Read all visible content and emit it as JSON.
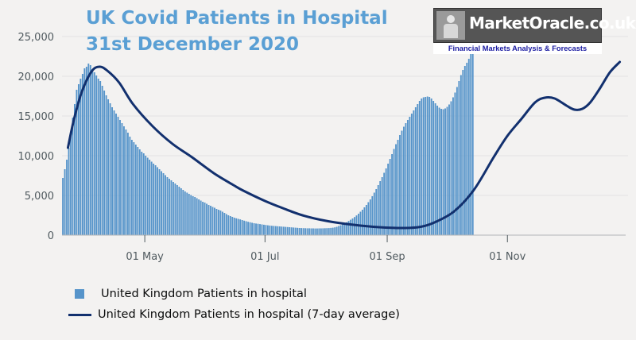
{
  "title": {
    "line1": "UK Covid Patients in Hospital",
    "line2": "31st December 2020"
  },
  "logo": {
    "text": "MarketOracle.co.uk",
    "tagline": "Financial Markets Analysis & Forecasts"
  },
  "legend": {
    "bars_label": "United Kingdom Patients in hospital",
    "line_label": "United Kingdom Patients in hospital (7-day average)"
  },
  "colors": {
    "bars": "#5694ca",
    "line": "#12306e",
    "title": "#5a9fd4",
    "axis_text": "#505a5f"
  },
  "chart_data": {
    "type": "bar",
    "title": "UK Covid Patients in Hospital",
    "subtitle": "31st December 2020",
    "xlabel": "",
    "ylabel": "",
    "x_range": [
      "2020-03-20",
      "2020-12-31"
    ],
    "ylim": [
      0,
      25000
    ],
    "yticks": [
      0,
      5000,
      10000,
      15000,
      20000,
      25000
    ],
    "ytick_labels": [
      "0",
      "5,000",
      "10,000",
      "15,000",
      "20,000",
      "25,000"
    ],
    "xticks": [
      {
        "date": "2020-05-01",
        "label": "01 May"
      },
      {
        "date": "2020-07-01",
        "label": "01 Jul"
      },
      {
        "date": "2020-09-01",
        "label": "01 Sep"
      },
      {
        "date": "2020-11-01",
        "label": "01 Nov"
      }
    ],
    "grid": true,
    "series": [
      {
        "name": "United Kingdom Patients in hospital",
        "kind": "bar",
        "start_date": "2020-03-20",
        "values": [
          7200,
          8300,
          9500,
          11000,
          13000,
          14800,
          16500,
          18300,
          19000,
          19700,
          20300,
          21000,
          21200,
          21600,
          21400,
          20900,
          20500,
          20100,
          19700,
          19400,
          18800,
          18200,
          17600,
          17100,
          16600,
          16100,
          15700,
          15300,
          14900,
          14500,
          14100,
          13700,
          13300,
          12900,
          12400,
          12000,
          11700,
          11400,
          11100,
          10800,
          10500,
          10300,
          10000,
          9750,
          9500,
          9250,
          9000,
          8800,
          8550,
          8300,
          8050,
          7800,
          7550,
          7300,
          7100,
          6900,
          6700,
          6500,
          6300,
          6100,
          5900,
          5700,
          5500,
          5350,
          5200,
          5050,
          4900,
          4800,
          4650,
          4500,
          4350,
          4200,
          4100,
          3950,
          3800,
          3700,
          3550,
          3450,
          3300,
          3200,
          3100,
          2950,
          2800,
          2650,
          2500,
          2400,
          2300,
          2200,
          2120,
          2050,
          1980,
          1900,
          1820,
          1750,
          1680,
          1620,
          1560,
          1500,
          1460,
          1430,
          1390,
          1350,
          1310,
          1280,
          1240,
          1210,
          1180,
          1160,
          1140,
          1120,
          1100,
          1080,
          1060,
          1040,
          1020,
          1000,
          980,
          960,
          940,
          920,
          900,
          890,
          880,
          870,
          860,
          860,
          850,
          850,
          840,
          840,
          850,
          850,
          860,
          870,
          880,
          890,
          910,
          940,
          980,
          1050,
          1150,
          1250,
          1350,
          1480,
          1620,
          1780,
          1940,
          2100,
          2280,
          2480,
          2700,
          2950,
          3200,
          3500,
          3800,
          4150,
          4500,
          4900,
          5350,
          5800,
          6300,
          6800,
          7300,
          7850,
          8400,
          9000,
          9600,
          10200,
          10850,
          11450,
          12000,
          12600,
          13150,
          13650,
          14100,
          14500,
          14900,
          15300,
          15700,
          16100,
          16500,
          16900,
          17200,
          17350,
          17400,
          17450,
          17400,
          17200,
          16900,
          16600,
          16300,
          16050,
          15900,
          15850,
          15950,
          16150,
          16450,
          16850,
          17350,
          17950,
          18650,
          19400,
          20150,
          20800,
          21300,
          21700,
          22200,
          22800,
          23800
        ]
      },
      {
        "name": "United Kingdom Patients in hospital (7-day average)",
        "kind": "line",
        "points": [
          {
            "date": "2020-03-23",
            "value": 11000
          },
          {
            "date": "2020-03-26",
            "value": 14500
          },
          {
            "date": "2020-03-30",
            "value": 18000
          },
          {
            "date": "2020-04-04",
            "value": 20600
          },
          {
            "date": "2020-04-08",
            "value": 21200
          },
          {
            "date": "2020-04-12",
            "value": 20700
          },
          {
            "date": "2020-04-18",
            "value": 19200
          },
          {
            "date": "2020-04-25",
            "value": 16500
          },
          {
            "date": "2020-05-05",
            "value": 13700
          },
          {
            "date": "2020-05-15",
            "value": 11500
          },
          {
            "date": "2020-05-25",
            "value": 9800
          },
          {
            "date": "2020-06-05",
            "value": 7800
          },
          {
            "date": "2020-06-15",
            "value": 6300
          },
          {
            "date": "2020-06-20",
            "value": 5600
          },
          {
            "date": "2020-07-01",
            "value": 4300
          },
          {
            "date": "2020-07-10",
            "value": 3400
          },
          {
            "date": "2020-07-20",
            "value": 2500
          },
          {
            "date": "2020-08-01",
            "value": 1800
          },
          {
            "date": "2020-08-15",
            "value": 1300
          },
          {
            "date": "2020-08-28",
            "value": 1000
          },
          {
            "date": "2020-09-10",
            "value": 900
          },
          {
            "date": "2020-09-18",
            "value": 1050
          },
          {
            "date": "2020-09-25",
            "value": 1600
          },
          {
            "date": "2020-10-05",
            "value": 3000
          },
          {
            "date": "2020-10-15",
            "value": 5700
          },
          {
            "date": "2020-10-25",
            "value": 9800
          },
          {
            "date": "2020-11-01",
            "value": 12500
          },
          {
            "date": "2020-11-08",
            "value": 14600
          },
          {
            "date": "2020-11-15",
            "value": 16700
          },
          {
            "date": "2020-11-20",
            "value": 17300
          },
          {
            "date": "2020-11-25",
            "value": 17200
          },
          {
            "date": "2020-12-01",
            "value": 16300
          },
          {
            "date": "2020-12-05",
            "value": 15800
          },
          {
            "date": "2020-12-09",
            "value": 15900
          },
          {
            "date": "2020-12-13",
            "value": 16700
          },
          {
            "date": "2020-12-18",
            "value": 18500
          },
          {
            "date": "2020-12-23",
            "value": 20500
          },
          {
            "date": "2020-12-28",
            "value": 21800
          }
        ]
      }
    ]
  }
}
